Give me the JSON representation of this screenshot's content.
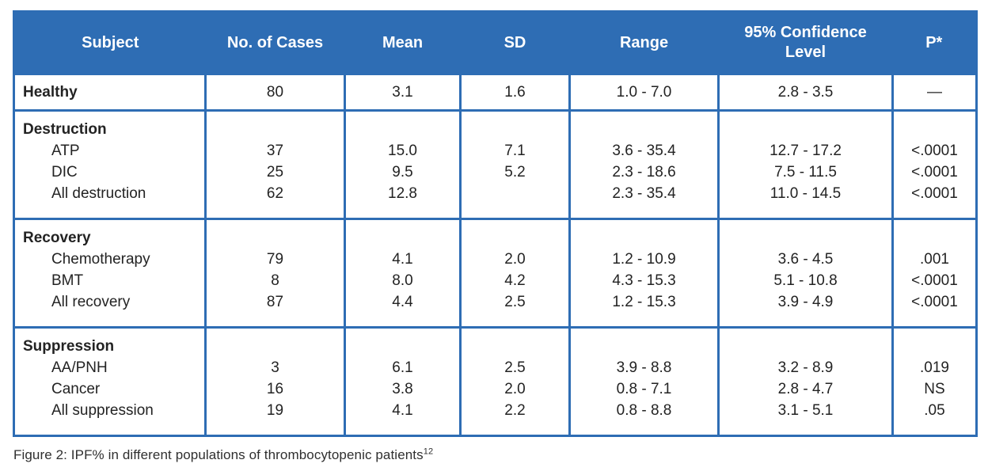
{
  "colors": {
    "header_bg": "#2e6db4",
    "border": "#2e6db4",
    "header_text": "#ffffff",
    "body_text": "#232323"
  },
  "table": {
    "columns": [
      "Subject",
      "No. of Cases",
      "Mean",
      "SD",
      "Range",
      "95% Confidence Level",
      "P*"
    ],
    "sections": [
      {
        "group": null,
        "rows": [
          {
            "subject": "Healthy",
            "cells": [
              "80",
              "3.1",
              "1.6",
              "1.0 - 7.0",
              "2.8 - 3.5",
              "—"
            ]
          }
        ]
      },
      {
        "group": "Destruction",
        "rows": [
          {
            "subject": "ATP",
            "cells": [
              "37",
              "15.0",
              "7.1",
              "3.6 - 35.4",
              "12.7 - 17.2",
              "<.0001"
            ]
          },
          {
            "subject": "DIC",
            "cells": [
              "25",
              "9.5",
              "5.2",
              "2.3 - 18.6",
              "7.5 - 11.5",
              "<.0001"
            ]
          },
          {
            "subject": "All destruction",
            "cells": [
              "62",
              "12.8",
              "",
              "2.3 - 35.4",
              "11.0 - 14.5",
              "<.0001"
            ]
          }
        ]
      },
      {
        "group": "Recovery",
        "rows": [
          {
            "subject": "Chemotherapy",
            "cells": [
              "79",
              "4.1",
              "2.0",
              "1.2 - 10.9",
              "3.6 - 4.5",
              ".001"
            ]
          },
          {
            "subject": "BMT",
            "cells": [
              "8",
              "8.0",
              "4.2",
              "4.3 - 15.3",
              "5.1 - 10.8",
              "<.0001"
            ]
          },
          {
            "subject": "All recovery",
            "cells": [
              "87",
              "4.4",
              "2.5",
              "1.2 - 15.3",
              "3.9 - 4.9",
              "<.0001"
            ]
          }
        ]
      },
      {
        "group": "Suppression",
        "rows": [
          {
            "subject": "AA/PNH",
            "cells": [
              "3",
              "6.1",
              "2.5",
              "3.9 - 8.8",
              "3.2 - 8.9",
              ".019"
            ]
          },
          {
            "subject": "Cancer",
            "cells": [
              "16",
              "3.8",
              "2.0",
              "0.8 - 7.1",
              "2.8 - 4.7",
              "NS"
            ]
          },
          {
            "subject": "All suppression",
            "cells": [
              "19",
              "4.1",
              "2.2",
              "0.8 - 8.8",
              "3.1 - 5.1",
              ".05"
            ]
          }
        ]
      }
    ]
  },
  "caption": {
    "text": "Figure 2:  IPF% in different populations of thrombocytopenic patients",
    "superscript": "12"
  }
}
